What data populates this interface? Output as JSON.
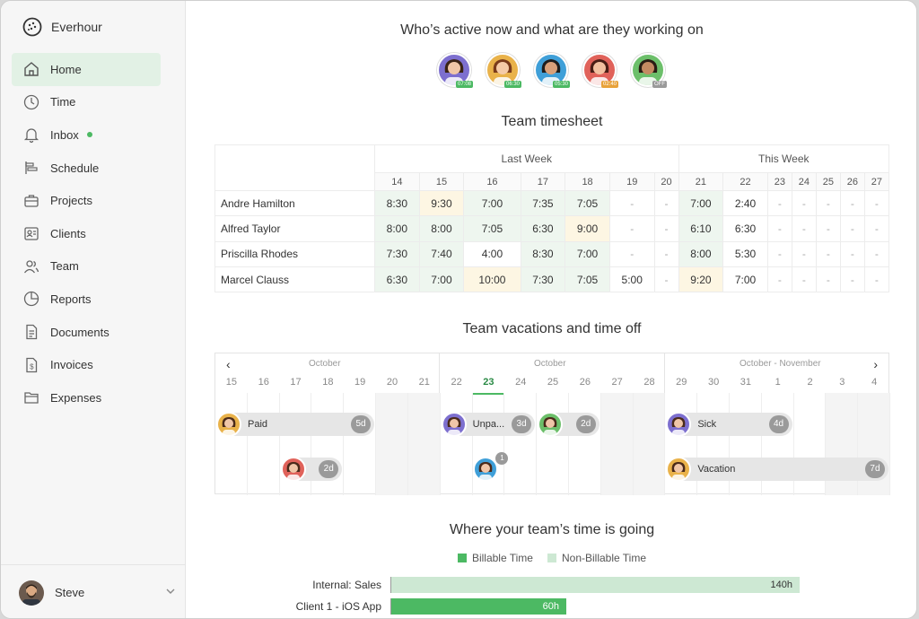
{
  "brand": {
    "name": "Everhour"
  },
  "nav": [
    {
      "label": "Home",
      "icon": "home-icon",
      "active": true
    },
    {
      "label": "Time",
      "icon": "clock-icon"
    },
    {
      "label": "Inbox",
      "icon": "bell-icon",
      "dot": true
    },
    {
      "label": "Schedule",
      "icon": "schedule-icon"
    },
    {
      "label": "Projects",
      "icon": "briefcase-icon"
    },
    {
      "label": "Clients",
      "icon": "contact-card-icon"
    },
    {
      "label": "Team",
      "icon": "team-icon"
    },
    {
      "label": "Reports",
      "icon": "pie-chart-icon"
    },
    {
      "label": "Documents",
      "icon": "document-icon"
    },
    {
      "label": "Invoices",
      "icon": "invoice-icon"
    },
    {
      "label": "Expenses",
      "icon": "folder-icon"
    }
  ],
  "user": {
    "name": "Steve"
  },
  "active": {
    "title": "Who’s active now and what are they working on",
    "people": [
      {
        "time": "07:08",
        "badge": "#4cb963",
        "bg": "#7d6fcf"
      },
      {
        "time": "06:30",
        "badge": "#4cb963",
        "bg": "#e9b24a"
      },
      {
        "time": "05:30",
        "badge": "#4cb963",
        "bg": "#3f9fd8"
      },
      {
        "time": "02:40",
        "badge": "#e8a23a",
        "bg": "#e0625a"
      },
      {
        "time": "OFF",
        "badge": "#9a9a9a",
        "bg": "#6cbf6a"
      }
    ]
  },
  "timesheet": {
    "title": "Team timesheet",
    "last_week": "Last Week",
    "this_week": "This Week",
    "days": [
      "14",
      "15",
      "16",
      "17",
      "18",
      "19",
      "20",
      "21",
      "22",
      "23",
      "24",
      "25",
      "26",
      "27"
    ],
    "rows": [
      {
        "name": "Andre Hamilton",
        "cells": [
          "8:30",
          "9:30",
          "7:00",
          "7:35",
          "7:05",
          "-",
          "-",
          "7:00",
          "2:40",
          "-",
          "-",
          "-",
          "-",
          "-"
        ]
      },
      {
        "name": "Alfred Taylor",
        "cells": [
          "8:00",
          "8:00",
          "7:05",
          "6:30",
          "9:00",
          "-",
          "-",
          "6:10",
          "6:30",
          "-",
          "-",
          "-",
          "-",
          "-"
        ]
      },
      {
        "name": "Priscilla Rhodes",
        "cells": [
          "7:30",
          "7:40",
          "4:00",
          "8:30",
          "7:00",
          "-",
          "-",
          "8:00",
          "5:30",
          "-",
          "-",
          "-",
          "-",
          "-"
        ]
      },
      {
        "name": "Marcel Clauss",
        "cells": [
          "6:30",
          "7:00",
          "10:00",
          "7:30",
          "7:05",
          "5:00",
          "-",
          "9:20",
          "7:00",
          "-",
          "-",
          "-",
          "-",
          "-"
        ]
      }
    ]
  },
  "vacations": {
    "title": "Team vacations and time off",
    "months": [
      "October",
      "October",
      "October - November"
    ],
    "days": [
      "15",
      "16",
      "17",
      "18",
      "19",
      "20",
      "21",
      "22",
      "23",
      "24",
      "25",
      "26",
      "27",
      "28",
      "29",
      "30",
      "31",
      "1",
      "2",
      "3",
      "4"
    ],
    "today": "23",
    "bars": [
      {
        "label": "Paid",
        "count": "5d"
      },
      {
        "label": "",
        "count": "2d"
      },
      {
        "label": "Unpa...",
        "count": "3d"
      },
      {
        "label": "",
        "count": "2d"
      },
      {
        "label": "",
        "count": "1"
      },
      {
        "label": "Sick",
        "count": "4d"
      },
      {
        "label": "Vacation",
        "count": "7d"
      }
    ]
  },
  "time_going": {
    "title": "Where your team’s time is going",
    "legend_billable": "Billable Time",
    "legend_non_billable": "Non-Billable Time",
    "colors": {
      "billable": "#4cb963",
      "non_billable": "#cde8d3"
    },
    "rows": [
      {
        "label": "Internal: Sales",
        "value": "140h",
        "hours": 140,
        "type": "non_billable"
      },
      {
        "label": "Client 1 - iOS App",
        "value": "60h",
        "hours": 60,
        "type": "billable"
      }
    ]
  }
}
